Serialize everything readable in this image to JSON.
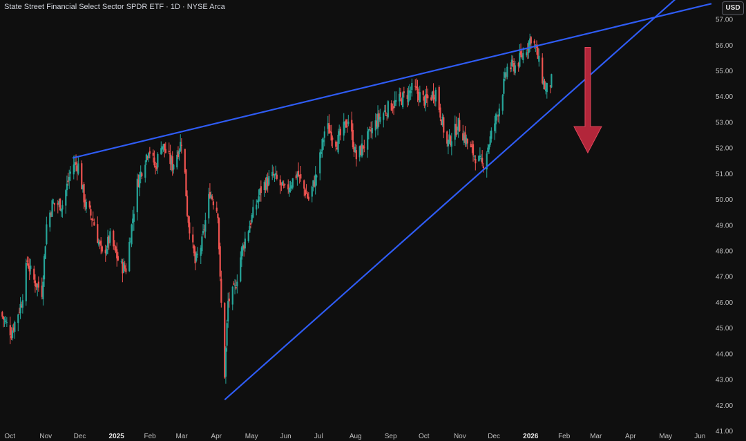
{
  "header": {
    "title": "State Street Financial Select Sector SPDR ETF · 1D · NYSE Arca",
    "currency_button": "USD"
  },
  "colors": {
    "background": "#0f0f0f",
    "up_candle": "#26a69a",
    "down_candle": "#ef5350",
    "trendline": "#2f5cf5",
    "arrow": "#b3263a",
    "axis_text": "#bfbfbf"
  },
  "chart_data": {
    "type": "candlestick",
    "y_axis": {
      "min": 41,
      "max": 57.5,
      "ticks": [
        "41.00",
        "42.00",
        "43.00",
        "44.00",
        "45.00",
        "46.00",
        "47.00",
        "48.00",
        "49.00",
        "50.00",
        "51.00",
        "52.00",
        "53.00",
        "54.00",
        "55.00",
        "56.00",
        "57.00"
      ],
      "position": "right",
      "currency": "USD"
    },
    "x_axis": {
      "range": [
        "2024-09-21",
        "2026-06-10"
      ],
      "ticks": [
        {
          "label": "Oct",
          "date": "2024-10-01",
          "bold": false
        },
        {
          "label": "Nov",
          "date": "2024-11-01",
          "bold": false
        },
        {
          "label": "Dec",
          "date": "2024-12-01",
          "bold": false
        },
        {
          "label": "2025",
          "date": "2025-01-01",
          "bold": true
        },
        {
          "label": "Feb",
          "date": "2025-02-01",
          "bold": false
        },
        {
          "label": "Mar",
          "date": "2025-03-01",
          "bold": false
        },
        {
          "label": "Apr",
          "date": "2025-04-01",
          "bold": false
        },
        {
          "label": "May",
          "date": "2025-05-01",
          "bold": false
        },
        {
          "label": "Jun",
          "date": "2025-06-01",
          "bold": false
        },
        {
          "label": "Jul",
          "date": "2025-07-01",
          "bold": false
        },
        {
          "label": "Aug",
          "date": "2025-08-01",
          "bold": false
        },
        {
          "label": "Sep",
          "date": "2025-09-01",
          "bold": false
        },
        {
          "label": "Oct",
          "date": "2025-10-01",
          "bold": false
        },
        {
          "label": "Nov",
          "date": "2025-11-01",
          "bold": false
        },
        {
          "label": "Dec",
          "date": "2025-12-01",
          "bold": false
        },
        {
          "label": "2026",
          "date": "2026-01-01",
          "bold": true
        },
        {
          "label": "Feb",
          "date": "2026-02-01",
          "bold": false
        },
        {
          "label": "Mar",
          "date": "2026-03-01",
          "bold": false
        },
        {
          "label": "Apr",
          "date": "2026-04-01",
          "bold": false
        },
        {
          "label": "May",
          "date": "2026-05-01",
          "bold": false
        },
        {
          "label": "Jun",
          "date": "2026-06-01",
          "bold": false
        }
      ]
    },
    "price_path": [
      [
        "2024-09-21",
        45.6
      ],
      [
        "2024-10-01",
        44.8
      ],
      [
        "2024-10-10",
        46.0
      ],
      [
        "2024-10-15",
        47.6
      ],
      [
        "2024-10-20",
        46.9
      ],
      [
        "2024-10-28",
        46.4
      ],
      [
        "2024-11-01",
        49.0
      ],
      [
        "2024-11-06",
        49.8
      ],
      [
        "2024-11-15",
        49.8
      ],
      [
        "2024-11-24",
        51.4
      ],
      [
        "2024-11-29",
        51.3
      ],
      [
        "2024-12-05",
        49.8
      ],
      [
        "2024-12-12",
        49.2
      ],
      [
        "2024-12-20",
        47.8
      ],
      [
        "2024-12-27",
        48.5
      ],
      [
        "2025-01-05",
        47.4
      ],
      [
        "2025-01-10",
        47.3
      ],
      [
        "2025-01-20",
        50.6
      ],
      [
        "2025-01-30",
        52.0
      ],
      [
        "2025-02-05",
        51.2
      ],
      [
        "2025-02-10",
        52.2
      ],
      [
        "2025-02-20",
        51.3
      ],
      [
        "2025-03-01",
        52.4
      ],
      [
        "2025-03-05",
        49.5
      ],
      [
        "2025-03-12",
        47.5
      ],
      [
        "2025-03-18",
        48.3
      ],
      [
        "2025-03-25",
        50.3
      ],
      [
        "2025-04-01",
        49.5
      ],
      [
        "2025-04-03",
        46.8
      ],
      [
        "2025-04-07",
        43.2
      ],
      [
        "2025-04-10",
        46.0
      ],
      [
        "2025-04-16",
        46.5
      ],
      [
        "2025-04-22",
        48.0
      ],
      [
        "2025-05-01",
        49.3
      ],
      [
        "2025-05-10",
        50.5
      ],
      [
        "2025-05-20",
        50.9
      ],
      [
        "2025-05-30",
        50.3
      ],
      [
        "2025-06-10",
        51.0
      ],
      [
        "2025-06-20",
        50.0
      ],
      [
        "2025-06-28",
        51.1
      ],
      [
        "2025-07-05",
        52.9
      ],
      [
        "2025-07-15",
        52.2
      ],
      [
        "2025-07-25",
        53.1
      ],
      [
        "2025-08-01",
        51.6
      ],
      [
        "2025-08-10",
        52.3
      ],
      [
        "2025-08-20",
        53.1
      ],
      [
        "2025-08-30",
        53.6
      ],
      [
        "2025-09-10",
        53.9
      ],
      [
        "2025-09-20",
        54.3
      ],
      [
        "2025-10-01",
        53.8
      ],
      [
        "2025-10-10",
        54.2
      ],
      [
        "2025-10-20",
        52.1
      ],
      [
        "2025-10-30",
        52.9
      ],
      [
        "2025-11-10",
        51.9
      ],
      [
        "2025-11-20",
        51.3
      ],
      [
        "2025-11-28",
        52.5
      ],
      [
        "2025-12-05",
        53.6
      ],
      [
        "2025-12-12",
        55.1
      ],
      [
        "2025-12-20",
        55.2
      ],
      [
        "2025-12-28",
        55.8
      ],
      [
        "2026-01-02",
        56.3
      ],
      [
        "2026-01-06",
        55.9
      ],
      [
        "2026-01-12",
        54.7
      ],
      [
        "2026-01-15",
        54.2
      ],
      [
        "2026-01-20",
        54.6
      ]
    ],
    "trendlines": [
      {
        "name": "upper",
        "start": [
          "2024-11-24",
          51.6
        ],
        "end": [
          "2026-06-10",
          57.6
        ]
      },
      {
        "name": "lower",
        "start": [
          "2025-04-07",
          42.2
        ],
        "end": [
          "2025-11-20",
          51.1
        ]
      }
    ],
    "annotations": [
      {
        "type": "arrow",
        "direction": "down",
        "from": [
          "2026-02-21",
          55.9
        ],
        "to": [
          "2026-02-21",
          51.8
        ]
      }
    ],
    "grid": false,
    "legend": "none"
  }
}
